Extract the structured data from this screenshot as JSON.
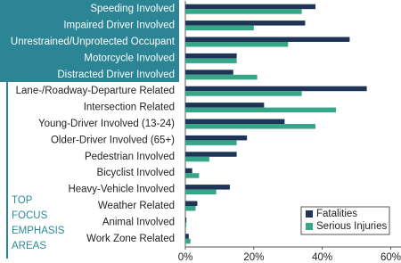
{
  "chart_data": {
    "type": "hbar",
    "categories": [
      "Speeding Involved",
      "Impaired Driver Involved",
      "Unrestrained/Unprotected Occupant",
      "Motorcycle Involved",
      "Distracted Driver Involved",
      "Lane-/Roadway-Departure Related",
      "Intersection Related",
      "Young-Driver Involved (13-24)",
      "Older-Driver Involved (65+)",
      "Pedestrian Involved",
      "Bicyclist Involved",
      "Heavy-Vehicle Involved",
      "Weather Related",
      "Animal Involved",
      "Work Zone Related"
    ],
    "series": [
      {
        "name": "Fatalities",
        "color": "#1e3557",
        "values": [
          38,
          35,
          48,
          15,
          14,
          53,
          23,
          29,
          18,
          15,
          2,
          13,
          3.5,
          0.3,
          1
        ]
      },
      {
        "name": "Serious Injuries",
        "color": "#35a688",
        "values": [
          34,
          20,
          30,
          15,
          21,
          34,
          44,
          38,
          15,
          7,
          4,
          9,
          3,
          0.3,
          1.5
        ]
      }
    ],
    "xlim": [
      0,
      63
    ],
    "xticks": [
      {
        "value": 0,
        "label": "0%"
      },
      {
        "value": 20,
        "label": "20%"
      },
      {
        "value": 40,
        "label": "40%"
      },
      {
        "value": 60,
        "label": "60%"
      }
    ],
    "annotation": [
      "TOP",
      "FOCUS",
      "EMPHASIS",
      "AREAS"
    ],
    "legend": "bottom-right"
  }
}
